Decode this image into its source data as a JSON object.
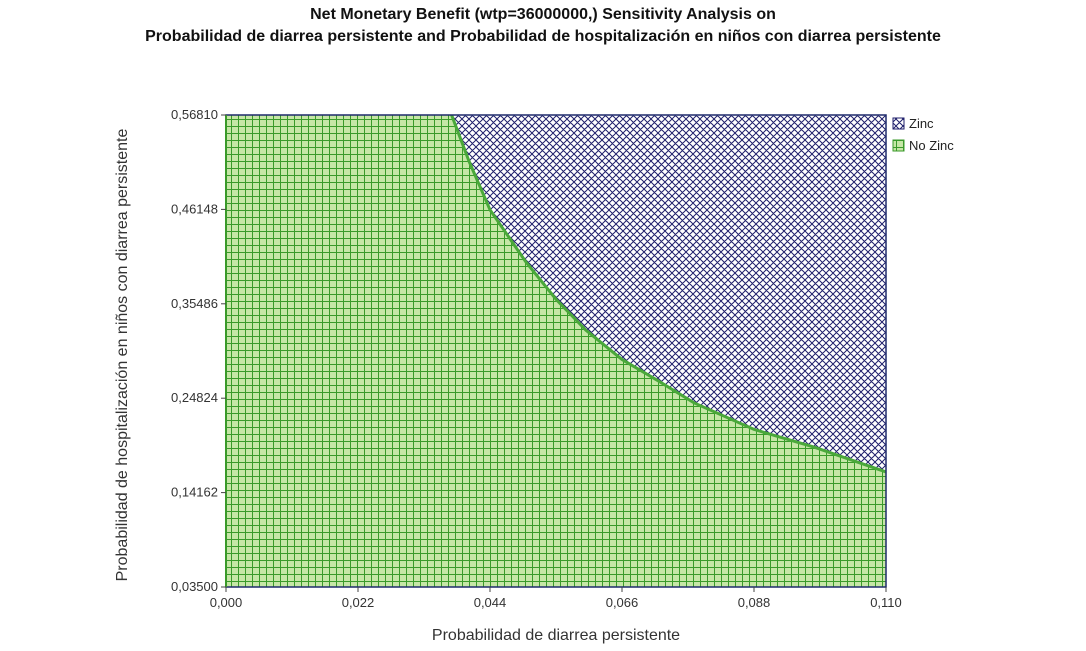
{
  "chart_data": {
    "type": "area",
    "title": "Net Monetary Benefit (wtp=36000000,) Sensitivity Analysis on",
    "subtitle": "Probabilidad de diarrea persistente and Probabilidad de hospitalización en niños con diarrea  persistente",
    "xlabel": "Probabilidad de diarrea persistente",
    "ylabel": "Probabilidad de hospitalización en niños con diarrea  persistente",
    "xlim": [
      0.0,
      0.11
    ],
    "ylim": [
      0.035,
      0.5681
    ],
    "x_ticks": [
      "0,000",
      "0,022",
      "0,044",
      "0,066",
      "0,088",
      "0,110"
    ],
    "x_tick_values": [
      0.0,
      0.022,
      0.044,
      0.066,
      0.088,
      0.11
    ],
    "y_ticks": [
      "0,03500",
      "0,14162",
      "0,24824",
      "0,35486",
      "0,46148",
      "0,56810"
    ],
    "y_tick_values": [
      0.035,
      0.14162,
      0.24824,
      0.35486,
      0.46148,
      0.5681
    ],
    "legend_position": "top-right",
    "grid": false,
    "boundary": {
      "x": [
        0.0376,
        0.0405,
        0.044,
        0.05,
        0.055,
        0.06,
        0.066,
        0.072,
        0.078,
        0.088,
        0.098,
        0.11
      ],
      "y": [
        0.5681,
        0.516,
        0.461,
        0.402,
        0.36,
        0.325,
        0.292,
        0.268,
        0.243,
        0.213,
        0.193,
        0.165
      ]
    },
    "series": [
      {
        "name": "Zinc",
        "region": "above boundary",
        "pattern": "diagonal-crosshatch",
        "color": "#1f1f6b"
      },
      {
        "name": "No Zinc",
        "region": "below boundary",
        "pattern": "grid",
        "color": "#3a9a2a"
      }
    ],
    "colors": {
      "no_zinc_fill": "#c6e7a6",
      "no_zinc_lines": "#3a9a2a",
      "boundary_line": "#4aa83a",
      "zinc_lines": "#1f1f6b",
      "frame": "#1f2a6b"
    }
  }
}
